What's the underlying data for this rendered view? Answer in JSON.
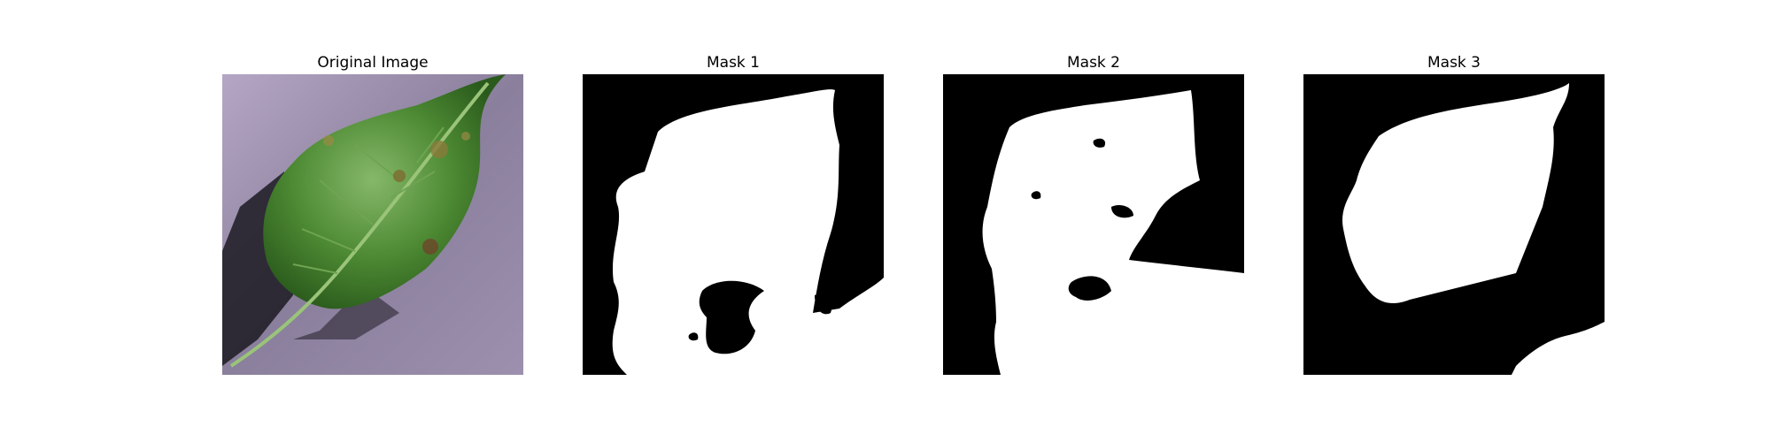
{
  "panels": [
    {
      "title": "Original Image"
    },
    {
      "title": "Mask 1"
    },
    {
      "title": "Mask 2"
    },
    {
      "title": "Mask 3"
    }
  ],
  "colors": {
    "background_texture": "#8f85a0",
    "leaf_green": "#3f7d2a",
    "leaf_highlight": "#8fbf69",
    "mask_foreground": "#ffffff",
    "mask_background": "#000000"
  }
}
